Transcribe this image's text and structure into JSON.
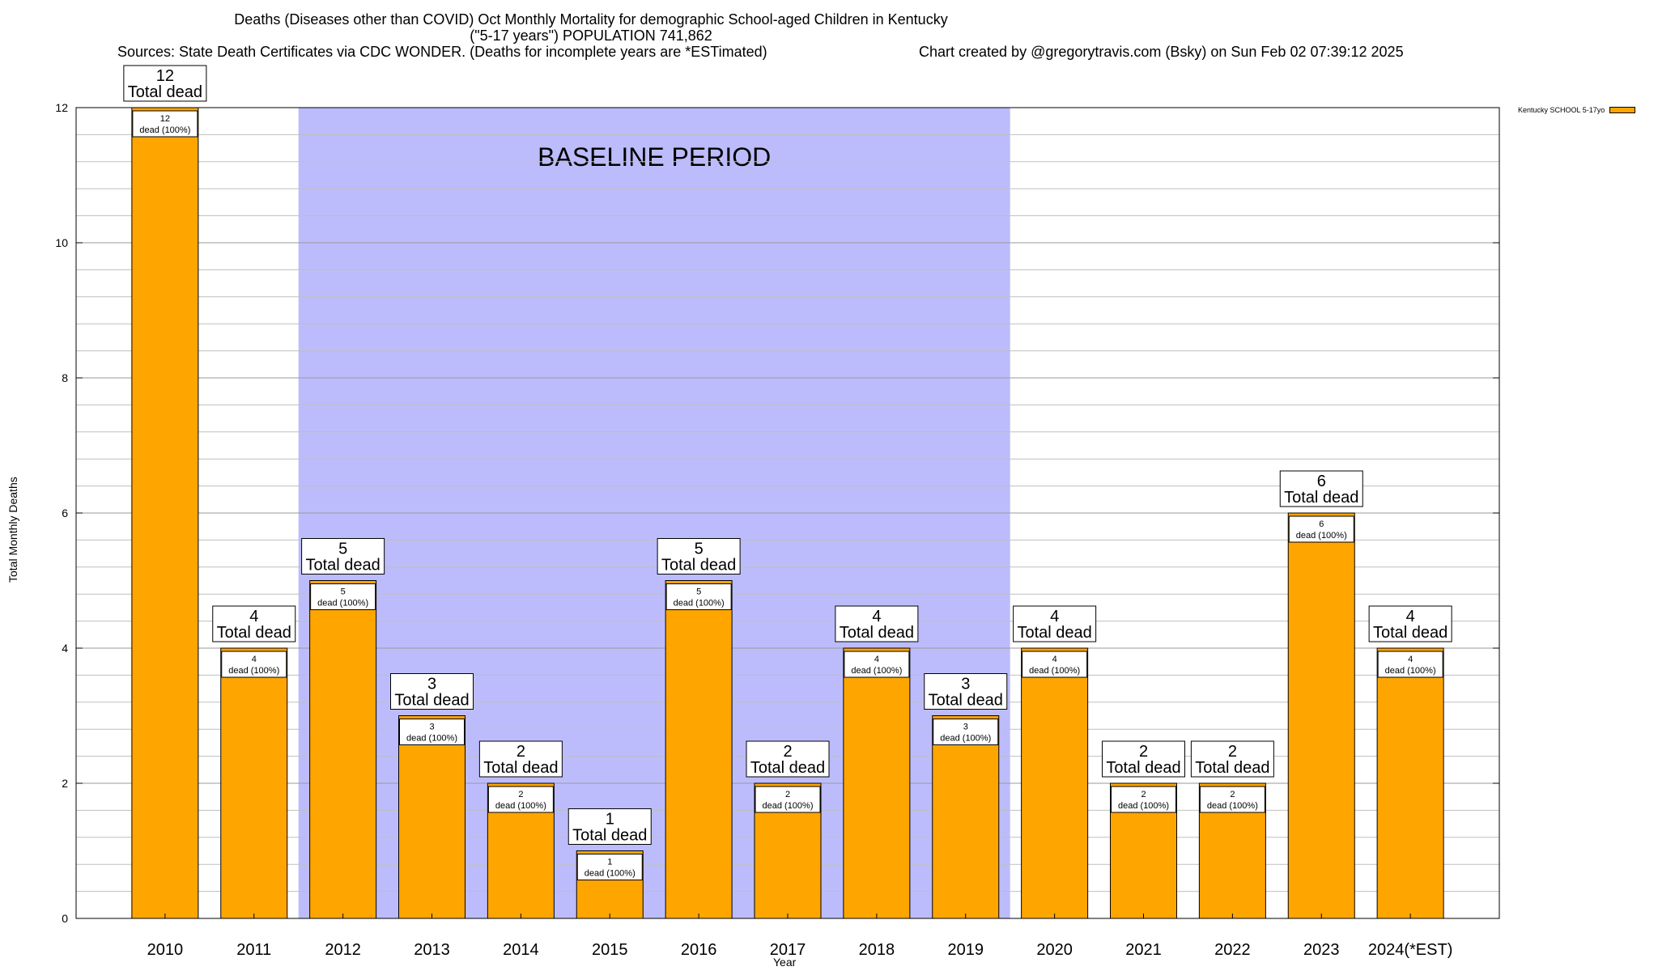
{
  "chart_data": {
    "type": "bar",
    "title": "Deaths (Diseases other than COVID) Oct Monthly Mortality for demographic School-aged Children in Kentucky",
    "subtitle": "(\"5-17 years\") POPULATION 741,862",
    "sources": "Sources: State Death Certificates via CDC WONDER. (Deaths for incomplete years are *ESTimated)",
    "credit": "Chart created by @gregorytravis.com (Bsky) on Sun Feb 02 07:39:12 2025",
    "xlabel": "Year",
    "ylabel": "Total Monthly Deaths",
    "ylim": [
      0,
      12
    ],
    "y_ticks": [
      0,
      2,
      4,
      6,
      8,
      10,
      12
    ],
    "y_minor_step": 0.4,
    "categories": [
      "2010",
      "2011",
      "2012",
      "2013",
      "2014",
      "2015",
      "2016",
      "2017",
      "2018",
      "2019",
      "2020",
      "2021",
      "2022",
      "2023",
      "2024(*EST)"
    ],
    "series": [
      {
        "name": "Kentucky SCHOOL 5-17yo",
        "color": "#ffa500",
        "values": [
          12,
          4,
          5,
          3,
          2,
          1,
          5,
          2,
          4,
          3,
          4,
          2,
          2,
          6,
          4
        ]
      }
    ],
    "total_label_suffix": "Total dead",
    "segment_label_suffix": "dead (100%)",
    "annotation": {
      "text": "BASELINE PERIOD",
      "from_category": "2012",
      "to_category": "2019",
      "color": "#bcbcfc"
    },
    "legend_position": "top-right",
    "grid": true
  }
}
